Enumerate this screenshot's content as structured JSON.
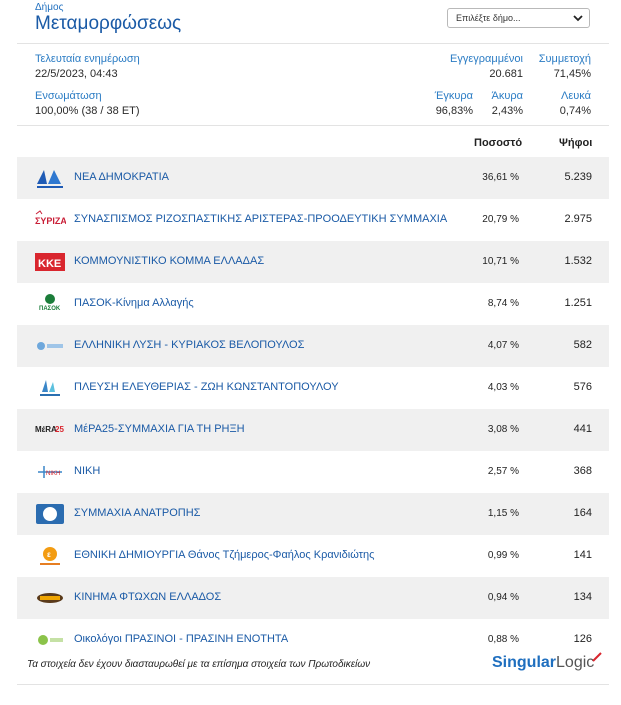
{
  "header": {
    "municipality_label": "Δήμος",
    "municipality_name": "Μεταμορφώσεως",
    "select_placeholder": "Επιλέξτε δήμο..."
  },
  "stats": {
    "last_update_label": "Τελευταία ενημέρωση",
    "last_update_value": "22/5/2023, 04:43",
    "registered_label": "Εγγεγραμμένοι",
    "registered_value": "20.681",
    "turnout_label": "Συμμετοχή",
    "turnout_value": "71,45%",
    "integration_label": "Ενσωμάτωση",
    "integration_value": "100,00% (38 / 38 ΕΤ)",
    "valid_label": "Έγκυρα",
    "valid_value": "96,83%",
    "invalid_label": "Άκυρα",
    "invalid_value": "2,43%",
    "blank_label": "Λευκά",
    "blank_value": "0,74%"
  },
  "columns": {
    "percent": "Ποσοστό",
    "votes": "Ψήφοι"
  },
  "parties": [
    {
      "name": "ΝΕΑ ΔΗΜΟΚΡΑΤΙΑ",
      "pct": "36,61 %",
      "votes": "5.239",
      "logo": "nd-logo"
    },
    {
      "name": "ΣΥΝΑΣΠΙΣΜΟΣ ΡΙΖΟΣΠΑΣΤΙΚΗΣ ΑΡΙΣΤΕΡΑΣ-ΠΡΟΟΔΕΥΤΙΚΗ ΣΥΜΜΑΧΙΑ",
      "pct": "20,79 %",
      "votes": "2.975",
      "logo": "syriza-logo"
    },
    {
      "name": "ΚΟΜΜΟΥΝΙΣΤΙΚΟ ΚΟΜΜΑ ΕΛΛΑΔΑΣ",
      "pct": "10,71 %",
      "votes": "1.532",
      "logo": "kke-logo"
    },
    {
      "name": "ΠΑΣΟΚ-Κίνημα Αλλαγής",
      "pct": "8,74 %",
      "votes": "1.251",
      "logo": "pasok-logo"
    },
    {
      "name": "ΕΛΛΗΝΙΚΗ ΛΥΣΗ - ΚΥΡΙΑΚΟΣ ΒΕΛΟΠΟΥΛΟΣ",
      "pct": "4,07 %",
      "votes": "582",
      "logo": "elliniki-lysi-logo"
    },
    {
      "name": "ΠΛΕΥΣΗ ΕΛΕΥΘΕΡΙΑΣ - ΖΩΗ ΚΩΝΣΤΑΝΤΟΠΟΥΛΟΥ",
      "pct": "4,03 %",
      "votes": "576",
      "logo": "plefsi-logo"
    },
    {
      "name": "ΜέΡΑ25-ΣΥΜΜΑΧΙΑ ΓΙΑ ΤΗ ΡΗΞΗ",
      "pct": "3,08 %",
      "votes": "441",
      "logo": "mera25-logo"
    },
    {
      "name": "ΝΙΚΗ",
      "pct": "2,57 %",
      "votes": "368",
      "logo": "niki-logo"
    },
    {
      "name": "ΣΥΜΜΑΧΙΑ ΑΝΑΤΡΟΠΗΣ",
      "pct": "1,15 %",
      "votes": "164",
      "logo": "anatropi-logo"
    },
    {
      "name": "ΕΘΝΙΚΗ ΔΗΜΙΟΥΡΓΙΑ Θάνος Τζήμερος-Φαήλος Κρανιδιώτης",
      "pct": "0,99 %",
      "votes": "141",
      "logo": "ethniki-dimiourgia-logo"
    },
    {
      "name": "ΚΙΝΗΜΑ ΦΤΩΧΩΝ ΕΛΛΑΔΟΣ",
      "pct": "0,94 %",
      "votes": "134",
      "logo": "kinima-ftoxon-logo"
    },
    {
      "name": "Οικολόγοι ΠΡΑΣΙΝΟΙ - ΠΡΑΣΙΝΗ ΕΝΟΤΗΤΑ",
      "pct": "0,88 %",
      "votes": "126",
      "logo": "oikologoi-logo"
    }
  ],
  "footer": {
    "note": "Τα στοιχεία δεν έχουν διασταυρωθεί με τα επίσημα στοιχεία των Πρωτοδικείων",
    "brand_part1": "Singular",
    "brand_part2": "Logic"
  },
  "colors": {
    "accent": "#1a5aa6",
    "row_shade": "#f0f0f0",
    "brand_red": "#d9262e"
  }
}
